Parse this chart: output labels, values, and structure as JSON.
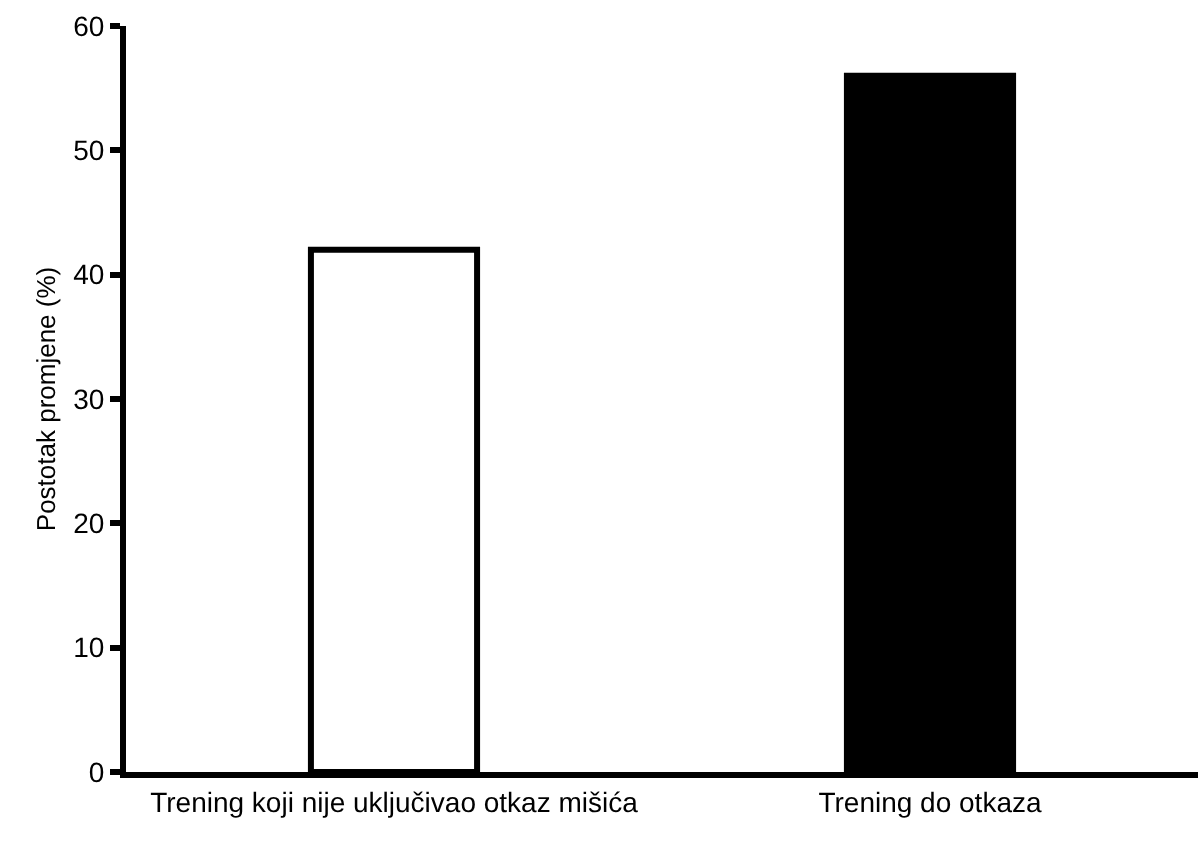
{
  "chart_data": {
    "type": "bar",
    "ylabel": "Postotak promjene (%)",
    "categories": [
      "Trening koji nije uključivao otkaz mišića",
      "Trening do otkaza"
    ],
    "values": [
      42,
      56
    ],
    "colors": [
      "#ffffff",
      "#000000"
    ],
    "ylim": [
      0,
      60
    ],
    "yticks": [
      0,
      10,
      20,
      30,
      40,
      50,
      60
    ]
  }
}
